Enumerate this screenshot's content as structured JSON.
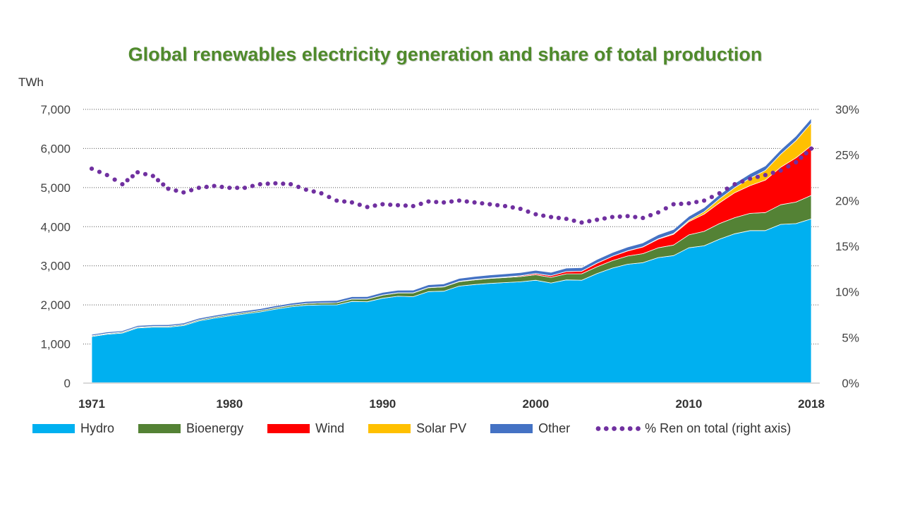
{
  "chart_data": {
    "type": "area",
    "title": "Global renewables electricity generation and share of total production",
    "y_unit_label": "TWh",
    "ylim": [
      0,
      7000
    ],
    "y2lim": [
      0,
      30
    ],
    "y_ticks": [
      "0",
      "1,000",
      "2,000",
      "3,000",
      "4,000",
      "5,000",
      "6,000",
      "7,000"
    ],
    "y2_ticks": [
      "0%",
      "5%",
      "10%",
      "15%",
      "20%",
      "25%",
      "30%"
    ],
    "x_ticks": [
      "1971",
      "1980",
      "1990",
      "2000",
      "2010",
      "2018"
    ],
    "grid": true,
    "legend_position": "bottom",
    "x": [
      1971,
      1972,
      1973,
      1974,
      1975,
      1976,
      1977,
      1978,
      1979,
      1980,
      1981,
      1982,
      1983,
      1984,
      1985,
      1986,
      1987,
      1988,
      1989,
      1990,
      1991,
      1992,
      1993,
      1994,
      1995,
      1996,
      1997,
      1998,
      1999,
      2000,
      2001,
      2002,
      2003,
      2004,
      2005,
      2006,
      2007,
      2008,
      2009,
      2010,
      2011,
      2012,
      2013,
      2014,
      2015,
      2016,
      2017,
      2018
    ],
    "series": [
      {
        "name": "Hydro",
        "color": "#00b0f0",
        "axis": "left",
        "values": [
          1190,
          1250,
          1280,
          1410,
          1430,
          1430,
          1470,
          1590,
          1660,
          1720,
          1770,
          1820,
          1890,
          1950,
          1990,
          2000,
          2000,
          2090,
          2080,
          2170,
          2220,
          2210,
          2340,
          2350,
          2480,
          2520,
          2550,
          2570,
          2590,
          2630,
          2560,
          2640,
          2630,
          2800,
          2940,
          3040,
          3080,
          3210,
          3260,
          3460,
          3510,
          3680,
          3820,
          3900,
          3900,
          4060,
          4080,
          4200
        ]
      },
      {
        "name": "Bioenergy",
        "color": "#548235",
        "axis": "left",
        "values": [
          20,
          20,
          22,
          22,
          22,
          24,
          25,
          26,
          28,
          30,
          32,
          34,
          36,
          40,
          45,
          50,
          55,
          60,
          70,
          80,
          85,
          95,
          100,
          110,
          115,
          120,
          125,
          130,
          135,
          140,
          145,
          155,
          165,
          175,
          190,
          210,
          230,
          250,
          270,
          330,
          370,
          400,
          410,
          440,
          460,
          500,
          550,
          600
        ]
      },
      {
        "name": "Wind",
        "color": "#ff0000",
        "axis": "left",
        "values": [
          0,
          0,
          0,
          0,
          0,
          0,
          0,
          0,
          0,
          0,
          0,
          0,
          0,
          0,
          0,
          0,
          0,
          0,
          0,
          4,
          4,
          5,
          5,
          6,
          8,
          10,
          12,
          15,
          20,
          30,
          40,
          55,
          65,
          90,
          110,
          130,
          170,
          220,
          275,
          340,
          440,
          530,
          640,
          710,
          830,
          960,
          1130,
          1270
        ]
      },
      {
        "name": "Solar PV",
        "color": "#ffc000",
        "axis": "left",
        "values": [
          0,
          0,
          0,
          0,
          0,
          0,
          0,
          0,
          0,
          0,
          0,
          0,
          0,
          0,
          0,
          0,
          0,
          0,
          0,
          0,
          0,
          0,
          0,
          0,
          0,
          0,
          0,
          0,
          0,
          1,
          1,
          2,
          2,
          3,
          4,
          5,
          8,
          12,
          20,
          30,
          60,
          100,
          130,
          190,
          250,
          330,
          440,
          580
        ]
      },
      {
        "name": "Other",
        "color": "#4472c4",
        "axis": "left",
        "values": [
          35,
          36,
          37,
          38,
          39,
          40,
          41,
          42,
          43,
          44,
          46,
          48,
          50,
          52,
          54,
          56,
          58,
          60,
          62,
          64,
          66,
          68,
          70,
          72,
          74,
          76,
          78,
          80,
          82,
          84,
          86,
          88,
          90,
          92,
          94,
          96,
          98,
          100,
          102,
          104,
          106,
          108,
          110,
          112,
          114,
          116,
          118,
          120
        ]
      },
      {
        "name": "% Ren on total (right axis)",
        "color": "#7030a0",
        "axis": "right",
        "values": [
          23.5,
          22.8,
          21.8,
          23.1,
          22.7,
          21.3,
          20.9,
          21.4,
          21.6,
          21.4,
          21.4,
          21.8,
          21.9,
          21.8,
          21.2,
          20.8,
          20.0,
          19.8,
          19.3,
          19.6,
          19.5,
          19.4,
          19.9,
          19.8,
          20.0,
          19.8,
          19.6,
          19.4,
          19.1,
          18.5,
          18.2,
          18.0,
          17.6,
          17.9,
          18.2,
          18.3,
          18.1,
          18.7,
          19.6,
          19.7,
          20.0,
          20.8,
          21.8,
          22.4,
          22.8,
          23.3,
          24.2,
          25.7
        ]
      }
    ]
  }
}
